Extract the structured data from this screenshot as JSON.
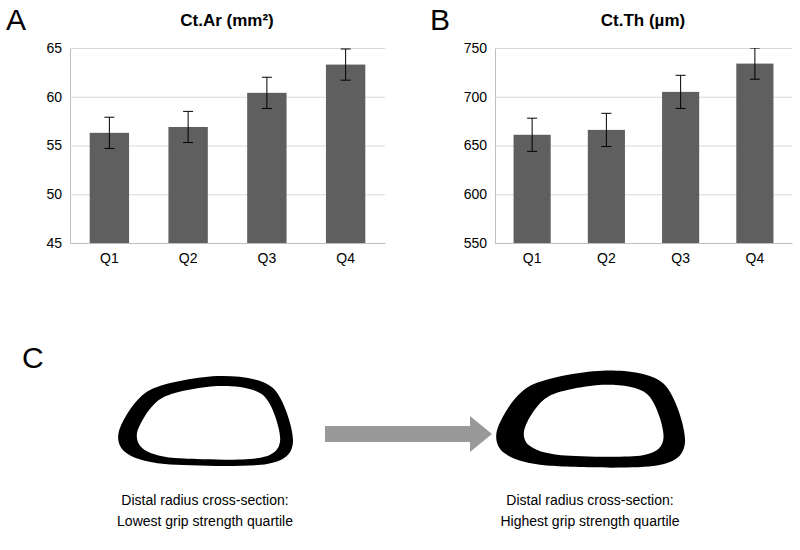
{
  "chart_data": [
    {
      "type": "bar",
      "title": "Ct.Ar (mm²)",
      "annotations": [
        "A"
      ],
      "categories": [
        "Q1",
        "Q2",
        "Q3",
        "Q4"
      ],
      "values": [
        56.3,
        56.9,
        60.4,
        63.3
      ],
      "errors": [
        1.6,
        1.6,
        1.6,
        1.6
      ],
      "color": "#5f5f5f",
      "ylim": [
        45,
        65
      ],
      "yticks": [
        45,
        50,
        55,
        60,
        65
      ],
      "grid": true
    },
    {
      "type": "bar",
      "title": "Ct.Th (µm)",
      "annotations": [
        "B"
      ],
      "categories": [
        "Q1",
        "Q2",
        "Q3",
        "Q4"
      ],
      "values": [
        661,
        666,
        705,
        734
      ],
      "errors": [
        17,
        17,
        17,
        16
      ],
      "color": "#5f5f5f",
      "ylim": [
        550,
        750
      ],
      "yticks": [
        550,
        600,
        650,
        700,
        750
      ],
      "grid": true
    }
  ],
  "diagram": {
    "panel": "C",
    "left_caption": [
      "Distal radius cross-section:",
      "Lowest grip strength quartile"
    ],
    "right_caption": [
      "Distal radius cross-section:",
      "Highest grip strength quartile"
    ]
  }
}
